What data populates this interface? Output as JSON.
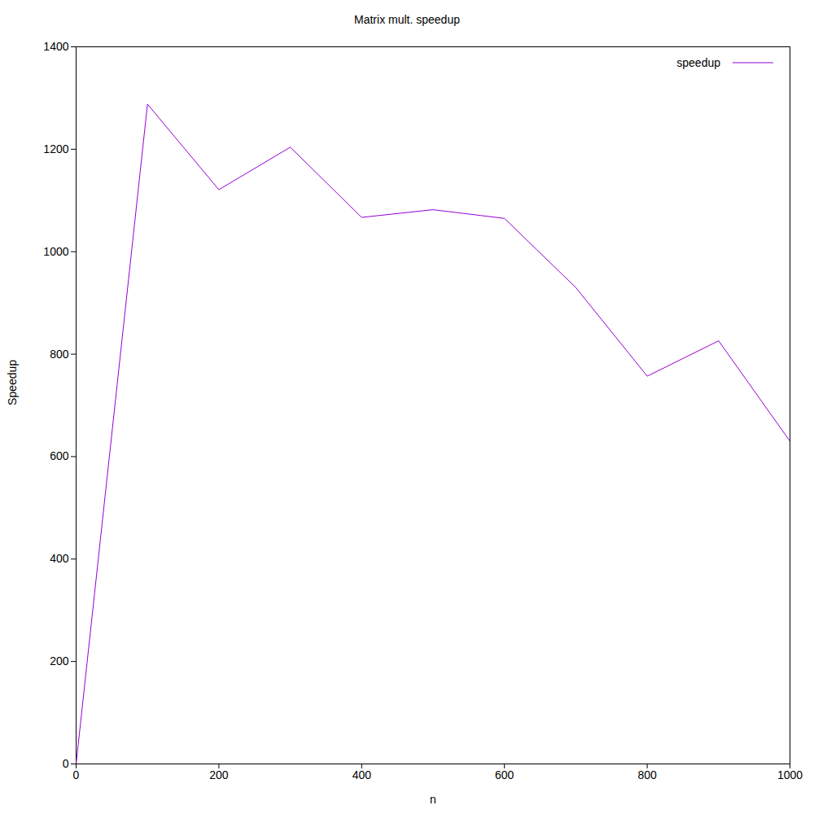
{
  "chart_data": {
    "type": "line",
    "title": "Matrix mult. speedup",
    "x_label": "n",
    "y_label": "Speedup",
    "x": [
      0,
      100,
      200,
      300,
      400,
      500,
      600,
      700,
      800,
      900,
      1000
    ],
    "series": [
      {
        "name": "speedup",
        "color": "#9400d3",
        "values": [
          0,
          1288,
          1121,
          1204,
          1067,
          1082,
          1065,
          930,
          757,
          826,
          630
        ]
      }
    ],
    "xlim": [
      0,
      1000
    ],
    "xticks": [
      0,
      200,
      400,
      600,
      800,
      1000
    ],
    "ylim": [
      0,
      1400
    ],
    "yticks": [
      0,
      200,
      400,
      600,
      800,
      1000,
      1200,
      1400
    ],
    "grid": false,
    "legend": "top-right"
  }
}
